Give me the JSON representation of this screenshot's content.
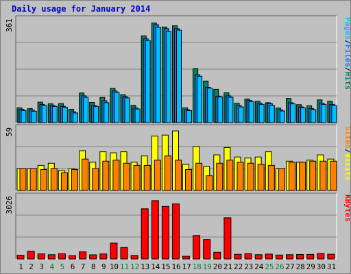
{
  "title": "Daily usage for January 2014",
  "colors": {
    "background": "#c0c0c0",
    "plot_bg": "#c0c0c0",
    "grid": "#808080",
    "title": "#0000c8",
    "hits": "#008060",
    "files": "#0080ff",
    "pages": "#00c0ff",
    "visits": "#ffff00",
    "sites": "#ff8000",
    "kbytes": "#ff0000",
    "weekday_label": "#000000",
    "weekend_label": "#008040"
  },
  "chart_data": [
    {
      "type": "bar",
      "name": "hits-files-pages",
      "scale_label": "361",
      "ylim": [
        0,
        361
      ],
      "grid": true,
      "right_label": {
        "parts": [
          {
            "text": "Pages",
            "color": "#00c0ff"
          },
          {
            "text": "/",
            "color": "#000000"
          },
          {
            "text": "Files",
            "color": "#0080ff"
          },
          {
            "text": "/",
            "color": "#000000"
          },
          {
            "text": "Hits",
            "color": "#008060"
          }
        ]
      },
      "categories": [
        "1",
        "2",
        "3",
        "4",
        "5",
        "6",
        "7",
        "8",
        "9",
        "10",
        "11",
        "12",
        "13",
        "14",
        "15",
        "16",
        "17",
        "18",
        "19",
        "20",
        "21",
        "22",
        "23",
        "24",
        "25",
        "26",
        "27",
        "28",
        "29",
        "30",
        "31"
      ],
      "series": [
        {
          "name": "Hits",
          "color": "#008060",
          "values": [
            52,
            49,
            72,
            66,
            67,
            47,
            104,
            71,
            88,
            120,
            98,
            61,
            305,
            350,
            336,
            340,
            52,
            190,
            146,
            117,
            105,
            68,
            83,
            75,
            70,
            51,
            85,
            63,
            59,
            80,
            75
          ]
        },
        {
          "name": "Files",
          "color": "#0080ff",
          "values": [
            47,
            44,
            64,
            60,
            57,
            38,
            94,
            60,
            77,
            111,
            91,
            51,
            294,
            344,
            330,
            330,
            45,
            168,
            124,
            93,
            94,
            60,
            78,
            68,
            67,
            45,
            70,
            55,
            49,
            68,
            64
          ]
        },
        {
          "name": "Pages",
          "color": "#00c0ff",
          "values": [
            42,
            40,
            60,
            57,
            54,
            34,
            89,
            57,
            70,
            106,
            87,
            48,
            288,
            335,
            320,
            325,
            42,
            163,
            121,
            90,
            89,
            55,
            74,
            64,
            61,
            41,
            66,
            52,
            46,
            64,
            60
          ]
        }
      ]
    },
    {
      "type": "bar",
      "name": "visits-sites",
      "scale_label": "59",
      "ylim": [
        0,
        59
      ],
      "grid": true,
      "right_label": {
        "parts": [
          {
            "text": "Sites",
            "color": "#ff8000"
          },
          {
            "text": "/",
            "color": "#000000"
          },
          {
            "text": "Visits",
            "color": "#ffff00"
          }
        ]
      },
      "categories": [
        "1",
        "2",
        "3",
        "4",
        "5",
        "6",
        "7",
        "8",
        "9",
        "10",
        "11",
        "12",
        "13",
        "14",
        "15",
        "16",
        "17",
        "18",
        "19",
        "20",
        "21",
        "22",
        "23",
        "24",
        "25",
        "26",
        "27",
        "28",
        "29",
        "30",
        "31"
      ],
      "series": [
        {
          "name": "Visits",
          "color": "#ffff00",
          "values": [
            21,
            21,
            24,
            26,
            19,
            21,
            38,
            27,
            37,
            36,
            37,
            27,
            33,
            52,
            53,
            57,
            25,
            42,
            23,
            34,
            41,
            32,
            31,
            32,
            37,
            21,
            28,
            27,
            29,
            34,
            30
          ]
        },
        {
          "name": "Sites",
          "color": "#ff8000",
          "values": [
            21,
            21,
            20,
            21,
            17,
            20,
            30,
            21,
            28,
            29,
            26,
            24,
            24,
            29,
            33,
            29,
            20,
            26,
            14,
            26,
            29,
            27,
            26,
            25,
            24,
            21,
            27,
            27,
            28,
            28,
            28
          ]
        }
      ]
    },
    {
      "type": "bar",
      "name": "kbytes",
      "scale_label": "3026",
      "ylim": [
        0,
        3026
      ],
      "grid": true,
      "right_label": {
        "parts": [
          {
            "text": "KBytes",
            "color": "#ff0000"
          }
        ]
      },
      "categories": [
        "1",
        "2",
        "3",
        "4",
        "5",
        "6",
        "7",
        "8",
        "9",
        "10",
        "11",
        "12",
        "13",
        "14",
        "15",
        "16",
        "17",
        "18",
        "19",
        "20",
        "21",
        "22",
        "23",
        "24",
        "25",
        "26",
        "27",
        "28",
        "29",
        "30",
        "31"
      ],
      "series": [
        {
          "name": "KBytes",
          "color": "#ff0000",
          "values": [
            183,
            380,
            250,
            210,
            253,
            160,
            345,
            201,
            245,
            776,
            560,
            170,
            2460,
            2860,
            2580,
            2700,
            130,
            1150,
            951,
            325,
            2020,
            230,
            260,
            210,
            240,
            193,
            210,
            220,
            223,
            270,
            233
          ]
        }
      ]
    }
  ],
  "day_labels": [
    "1",
    "2",
    "3",
    "4",
    "5",
    "6",
    "7",
    "8",
    "9",
    "10",
    "11",
    "12",
    "13",
    "14",
    "15",
    "16",
    "17",
    "18",
    "19",
    "20",
    "21",
    "22",
    "23",
    "24",
    "25",
    "26",
    "27",
    "28",
    "29",
    "30",
    "31"
  ],
  "weekend_days": [
    "4",
    "5",
    "11",
    "12",
    "18",
    "19",
    "25",
    "26"
  ]
}
